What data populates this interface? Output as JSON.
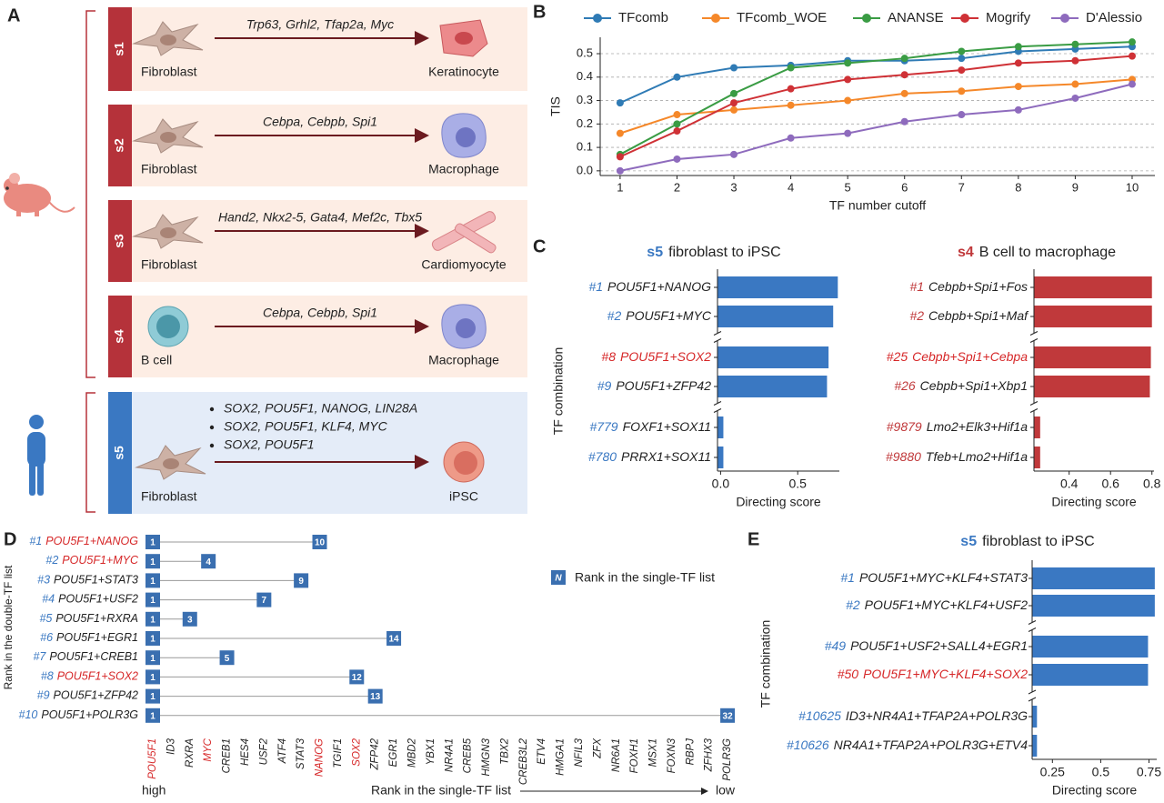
{
  "panel_labels": [
    "A",
    "B",
    "C",
    "D",
    "E"
  ],
  "panel_a": {
    "steps": [
      {
        "id": "s1",
        "from": "Fibroblast",
        "factors": [
          "Trp63, Grhl2, Tfap2a, Myc"
        ],
        "to": "Keratinocyte"
      },
      {
        "id": "s2",
        "from": "Fibroblast",
        "factors": [
          "Cebpa, Cebpb, Spi1"
        ],
        "to": "Macrophage"
      },
      {
        "id": "s3",
        "from": "Fibroblast",
        "factors": [
          "Hand2, Nkx2-5, Gata4, Mef2c, Tbx5"
        ],
        "to": "Cardiomyocyte"
      },
      {
        "id": "s4",
        "from": "B cell",
        "factors": [
          "Cebpa, Cebpb, Spi1"
        ],
        "to": "Macrophage"
      },
      {
        "id": "s5",
        "from": "Fibroblast",
        "factors": [
          "SOX2, POU5F1, NANOG, LIN28A",
          "SOX2, POU5F1, KLF4, MYC",
          "SOX2, POU5F1"
        ],
        "to": "iPSC"
      }
    ]
  },
  "chart_data": [
    {
      "type": "line",
      "x": [
        1,
        2,
        3,
        4,
        5,
        6,
        7,
        8,
        9,
        10
      ],
      "xlim": [
        0.65,
        10.4
      ],
      "xticks": [
        1,
        2,
        3,
        4,
        5,
        6,
        7,
        8,
        9,
        10
      ],
      "ylim": [
        -0.02,
        0.57
      ],
      "yticks": [
        {
          "value": 0,
          "label": "0.0"
        },
        0.1,
        0.2,
        0.3,
        0.4,
        0.5
      ],
      "grid": true,
      "legend": "top",
      "xlabel": "TF number cutoff",
      "ylabel": "TIS",
      "series": [
        {
          "name": "TFcomb",
          "color": "#2f7bb5",
          "values": [
            0.29,
            0.4,
            0.44,
            0.45,
            0.47,
            0.47,
            0.48,
            0.51,
            0.52,
            0.53
          ]
        },
        {
          "name": "TFcomb_WOE",
          "color": "#f5882a",
          "values": [
            0.16,
            0.24,
            0.26,
            0.28,
            0.3,
            0.33,
            0.34,
            0.36,
            0.37,
            0.39
          ]
        },
        {
          "name": "ANANSE",
          "color": "#3a9c44",
          "values": [
            0.07,
            0.2,
            0.33,
            0.44,
            0.46,
            0.48,
            0.51,
            0.53,
            0.54,
            0.55
          ]
        },
        {
          "name": "Mogrify",
          "color": "#cf3136",
          "values": [
            0.06,
            0.17,
            0.29,
            0.35,
            0.39,
            0.41,
            0.43,
            0.46,
            0.47,
            0.49
          ]
        },
        {
          "name": "D'Alessio",
          "color": "#8e6bbd",
          "values": [
            0.0,
            0.05,
            0.07,
            0.14,
            0.16,
            0.21,
            0.24,
            0.26,
            0.31,
            0.37
          ]
        }
      ]
    },
    {
      "type": "hbar",
      "title_tag": "s5",
      "title_tag_color": "#3a78c2",
      "title": "fibroblast to iPSC",
      "ranks": [
        "#1",
        "#2",
        "#8",
        "#9",
        "#779",
        "#780"
      ],
      "rank_color": "#3a78c2",
      "categories": [
        "POU5F1+NANOG",
        "POU5F1+MYC",
        "POU5F1+SOX2",
        "POU5F1+ZFP42",
        "FOXF1+SOX11",
        "PRRX1+SOX11"
      ],
      "label_colors": [
        "#222222",
        "#222222",
        "#d62728",
        "#222222",
        "#222222",
        "#222222"
      ],
      "values": [
        0.76,
        0.73,
        0.7,
        0.69,
        0.018,
        0.018
      ],
      "color": "#3a78c2",
      "xlim": [
        -0.02,
        0.77
      ],
      "xticks": [
        {
          "value": 0,
          "label": "0.0"
        },
        0.5
      ],
      "xlabel": "Directing score",
      "ylabel": "TF combination"
    },
    {
      "type": "hbar",
      "title_tag": "s4",
      "title_tag_color": "#c0393b",
      "title": "B cell to macrophage",
      "ranks": [
        "#1",
        "#2",
        "#25",
        "#26",
        "#9879",
        "#9880"
      ],
      "rank_color": "#c0393b",
      "categories": [
        "Cebpb+Spi1+Fos",
        "Cebpb+Spi1+Maf",
        "Cebpb+Spi1+Cebpa",
        "Cebpb+Spi1+Xbp1",
        "Lmo2+Elk3+Hif1a",
        "Tfeb+Lmo2+Hif1a"
      ],
      "label_colors": [
        "#222222",
        "#222222",
        "#d62728",
        "#222222",
        "#222222",
        "#222222"
      ],
      "values": [
        0.8,
        0.8,
        0.795,
        0.79,
        0.26,
        0.26
      ],
      "color": "#c0393b",
      "xlim": [
        0.23,
        0.81
      ],
      "xticks": [
        0.4,
        0.6,
        0.8
      ],
      "xlabel": "Directing score"
    },
    {
      "type": "rank_range",
      "ranks": [
        "#1",
        "#2",
        "#3",
        "#4",
        "#5",
        "#6",
        "#7",
        "#8",
        "#9",
        "#10"
      ],
      "rank_color": "#3a78c2",
      "categories": [
        "POU5F1+NANOG",
        "POU5F1+MYC",
        "POU5F1+STAT3",
        "POU5F1+USF2",
        "POU5F1+RXRA",
        "POU5F1+EGR1",
        "POU5F1+CREB1",
        "POU5F1+SOX2",
        "POU5F1+ZFP42",
        "POU5F1+POLR3G"
      ],
      "label_colors": [
        "#d62728",
        "#d62728",
        "#222222",
        "#222222",
        "#222222",
        "#222222",
        "#222222",
        "#d62728",
        "#222222",
        "#222222"
      ],
      "start": [
        1,
        1,
        1,
        1,
        1,
        1,
        1,
        1,
        1,
        1
      ],
      "end": [
        10,
        4,
        9,
        7,
        3,
        14,
        5,
        12,
        13,
        32
      ],
      "color": "#3a6fb0",
      "columns": [
        "POU5F1",
        "ID3",
        "RXRA",
        "MYC",
        "CREB1",
        "HES4",
        "USF2",
        "ATF4",
        "STAT3",
        "NANOG",
        "TGIF1",
        "SOX2",
        "ZFP42",
        "EGR1",
        "MBD2",
        "YBX1",
        "NR4A1",
        "CREB5",
        "HMGN3",
        "TBX2",
        "CREB3L2",
        "ETV4",
        "HMGA1",
        "NFIL3",
        "ZFX",
        "NR6A1",
        "FOXH1",
        "MSX1",
        "FOXN3",
        "RBPJ",
        "ZFHX3",
        "POLR3G"
      ],
      "column_colors": [
        "#d62728",
        "#222222",
        "#222222",
        "#d62728",
        "#222222",
        "#222222",
        "#222222",
        "#222222",
        "#222222",
        "#d62728",
        "#222222",
        "#d62728",
        "#222222",
        "#222222",
        "#222222",
        "#222222",
        "#222222",
        "#222222",
        "#222222",
        "#222222",
        "#222222",
        "#222222",
        "#222222",
        "#222222",
        "#222222",
        "#222222",
        "#222222",
        "#222222",
        "#222222",
        "#222222",
        "#222222",
        "#222222"
      ],
      "ylabel": "Rank in the double-TF list",
      "legend_symbol": "N",
      "legend_label": "Rank in the single-TF list",
      "axis_start": "high",
      "axis_title": "Rank in the single-TF list",
      "axis_end": "low"
    },
    {
      "type": "hbar",
      "title_tag": "s5",
      "title_tag_color": "#3a78c2",
      "title": "fibroblast to iPSC",
      "ranks": [
        "#1",
        "#2",
        "#49",
        "#50",
        "#10625",
        "#10626"
      ],
      "rank_color": "#3a78c2",
      "categories": [
        "POU5F1+MYC+KLF4+STAT3",
        "POU5F1+MYC+KLF4+USF2",
        "POU5F1+USF2+SALL4+EGR1",
        "POU5F1+MYC+KLF4+SOX2",
        "ID3+NR4A1+TFAP2A+POLR3G",
        "NR4A1+TFAP2A+POLR3G+ETV4"
      ],
      "label_colors": [
        "#222222",
        "#222222",
        "#222222",
        "#d62728",
        "#222222",
        "#222222"
      ],
      "values": [
        0.78,
        0.78,
        0.745,
        0.745,
        0.17,
        0.17
      ],
      "color": "#3a78c2",
      "xlim": [
        0.145,
        0.79
      ],
      "xticks": [
        0.25,
        0.5,
        0.75
      ],
      "xlabel": "Directing score",
      "ylabel": "TF combination"
    }
  ]
}
